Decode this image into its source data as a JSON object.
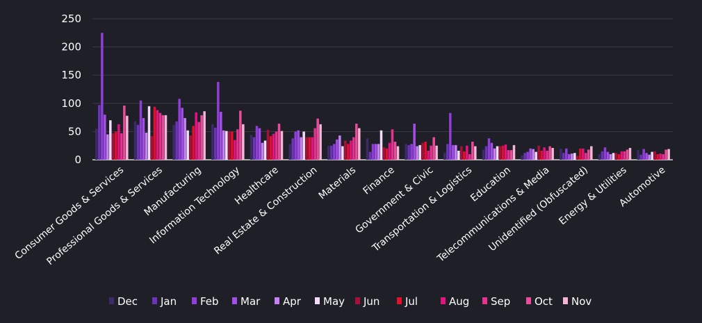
{
  "chart_data": {
    "type": "bar",
    "title": "",
    "xlabel": "",
    "ylabel": "",
    "ylim": [
      0,
      250
    ],
    "yticks": [
      0,
      50,
      100,
      150,
      200,
      250
    ],
    "grid": true,
    "legend_position": "bottom",
    "categories": [
      "Consumer Goods & Services",
      "Professional Goods & Services",
      "Manufacturing",
      "Information Technology",
      "Healthcare",
      "Real Estate & Construction",
      "Materials",
      "Finance",
      "Government & Civic",
      "Transportation & Logistics",
      "Education",
      "Telecommunications & Media",
      "Unidentified (Obfuscated)",
      "Energy & Utilities",
      "Automotive"
    ],
    "series": [
      {
        "name": "Dec",
        "color": "#3d2a66",
        "values": [
          55,
          68,
          62,
          63,
          44,
          28,
          25,
          38,
          28,
          13,
          18,
          8,
          20,
          10,
          17
        ]
      },
      {
        "name": "Jan",
        "color": "#6a35b8",
        "values": [
          97,
          62,
          68,
          57,
          40,
          38,
          25,
          14,
          26,
          28,
          24,
          12,
          12,
          15,
          9
        ]
      },
      {
        "name": "Feb",
        "color": "#8f3ed8",
        "values": [
          225,
          105,
          108,
          138,
          60,
          50,
          28,
          28,
          28,
          83,
          38,
          14,
          20,
          22,
          19
        ]
      },
      {
        "name": "Mar",
        "color": "#a24ee8",
        "values": [
          80,
          74,
          92,
          85,
          56,
          52,
          36,
          28,
          64,
          26,
          30,
          20,
          10,
          14,
          12
        ]
      },
      {
        "name": "Apr",
        "color": "#c582f3",
        "values": [
          45,
          48,
          74,
          52,
          30,
          40,
          43,
          28,
          24,
          26,
          20,
          19,
          11,
          10,
          9
        ]
      },
      {
        "name": "May",
        "color": "#f2dcf9",
        "values": [
          70,
          95,
          52,
          51,
          34,
          50,
          24,
          52,
          26,
          16,
          24,
          14,
          12,
          12,
          14
        ]
      },
      {
        "name": "Jun",
        "color": "#a8103a",
        "values": [
          47,
          42,
          43,
          50,
          53,
          40,
          34,
          22,
          30,
          24,
          24,
          25,
          7,
          12,
          15
        ]
      },
      {
        "name": "Jul",
        "color": "#e0102e",
        "values": [
          50,
          94,
          60,
          50,
          42,
          40,
          28,
          20,
          32,
          15,
          25,
          16,
          20,
          10,
          10
        ]
      },
      {
        "name": "Aug",
        "color": "#e31480",
        "values": [
          63,
          88,
          84,
          35,
          46,
          40,
          34,
          30,
          16,
          25,
          27,
          22,
          20,
          15,
          11
        ]
      },
      {
        "name": "Sep",
        "color": "#e3338e",
        "values": [
          47,
          83,
          67,
          54,
          50,
          56,
          40,
          54,
          25,
          10,
          17,
          16,
          12,
          15,
          10
        ]
      },
      {
        "name": "Oct",
        "color": "#ea4c9c",
        "values": [
          96,
          79,
          79,
          87,
          64,
          73,
          64,
          32,
          40,
          32,
          17,
          24,
          18,
          18,
          18
        ]
      },
      {
        "name": "Nov",
        "color": "#f5b5d8",
        "values": [
          78,
          79,
          86,
          63,
          51,
          63,
          56,
          24,
          25,
          24,
          26,
          21,
          24,
          21,
          19
        ]
      }
    ]
  }
}
